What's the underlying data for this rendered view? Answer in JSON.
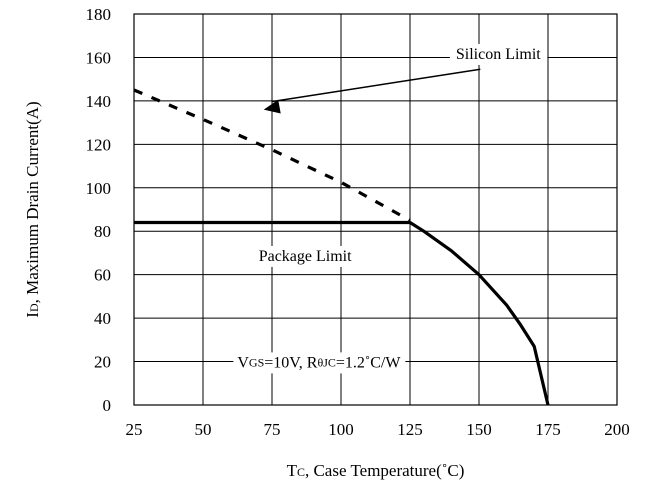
{
  "chart_data": {
    "type": "line",
    "x_ticks": [
      "25",
      "50",
      "75",
      "100",
      "125",
      "150",
      "175",
      "200"
    ],
    "y_ticks": [
      "0",
      "20",
      "40",
      "60",
      "80",
      "100",
      "120",
      "140",
      "160",
      "180"
    ],
    "xlim": [
      25,
      200
    ],
    "ylim": [
      0,
      180
    ],
    "grid": true,
    "xlabel": {
      "main": "T",
      "sub": "C",
      "rest": ", Case Temperature(˚C)"
    },
    "ylabel": {
      "main": "I",
      "sub": "D",
      "rest": ", Maximum Drain Current(A)"
    },
    "series": [
      {
        "style": "dashed",
        "x": [
          25,
          50,
          75,
          100,
          125
        ],
        "y": [
          145,
          131.5,
          117.5,
          102.5,
          85
        ]
      },
      {
        "style": "solid",
        "x": [
          25,
          125,
          130,
          140,
          150,
          160,
          165,
          170,
          175
        ],
        "y": [
          84,
          84,
          80,
          71,
          60,
          46,
          37,
          27,
          0
        ]
      }
    ],
    "annotations": [
      {
        "id": "silicon",
        "text": "Silicon Limit",
        "x": 157,
        "y": 161
      },
      {
        "id": "package",
        "text": "Package Limit",
        "x": 87,
        "y": 68
      },
      {
        "id": "conditions",
        "parts": [
          "V",
          "GS",
          "=10V, R",
          "θJC",
          "=1.2˚C/W"
        ],
        "x": 92,
        "y": 19
      }
    ]
  }
}
